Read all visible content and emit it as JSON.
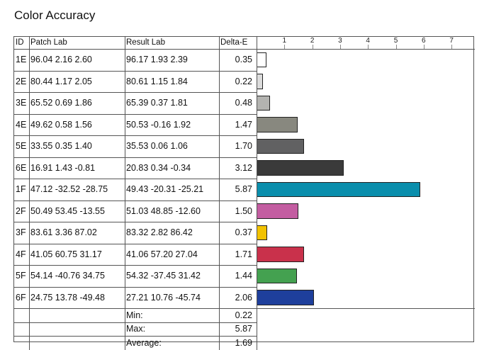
{
  "title": "Color Accuracy",
  "headers": {
    "id": "ID",
    "patch": "Patch Lab",
    "result": "Result Lab",
    "delta": "Delta-E"
  },
  "rows": [
    {
      "id": "1E",
      "patch": "96.04  2.16  2.60",
      "result": "96.17  1.93  2.39",
      "delta": "0.35",
      "value": 0.35,
      "color": "#ffffff"
    },
    {
      "id": "2E",
      "patch": "80.44  1.17  2.05",
      "result": "80.61  1.15  1.84",
      "delta": "0.22",
      "value": 0.22,
      "color": "#dcdcdc"
    },
    {
      "id": "3E",
      "patch": "65.52  0.69  1.86",
      "result": "65.39  0.37  1.81",
      "delta": "0.48",
      "value": 0.48,
      "color": "#b3b3b0"
    },
    {
      "id": "4E",
      "patch": "49.62  0.58  1.56",
      "result": "50.53  -0.16  1.92",
      "delta": "1.47",
      "value": 1.47,
      "color": "#88887f"
    },
    {
      "id": "5E",
      "patch": "33.55  0.35  1.40",
      "result": "35.53  0.06  1.06",
      "delta": "1.70",
      "value": 1.7,
      "color": "#616162"
    },
    {
      "id": "6E",
      "patch": "16.91  1.43  -0.81",
      "result": "20.83  0.34  -0.34",
      "delta": "3.12",
      "value": 3.12,
      "color": "#3a3a3a"
    },
    {
      "id": "1F",
      "patch": "47.12 -32.52 -28.75",
      "result": "49.43 -20.31 -25.21",
      "delta": "5.87",
      "value": 5.87,
      "color": "#0a8eac"
    },
    {
      "id": "2F",
      "patch": "50.49  53.45 -13.55",
      "result": "51.03  48.85 -12.60",
      "delta": "1.50",
      "value": 1.5,
      "color": "#c35da1"
    },
    {
      "id": "3F",
      "patch": "83.61  3.36  87.02",
      "result": "83.32  2.82  86.42",
      "delta": "0.37",
      "value": 0.37,
      "color": "#f2c200"
    },
    {
      "id": "4F",
      "patch": "41.05  60.75  31.17",
      "result": "41.06  57.20  27.04",
      "delta": "1.71",
      "value": 1.71,
      "color": "#c9314b"
    },
    {
      "id": "5F",
      "patch": "54.14 -40.76  34.75",
      "result": "54.32 -37.45  31.42",
      "delta": "1.44",
      "value": 1.44,
      "color": "#44a150"
    },
    {
      "id": "6F",
      "patch": "24.75  13.78 -49.48",
      "result": "27.21  10.76 -45.74",
      "delta": "2.06",
      "value": 2.06,
      "color": "#1e3f9c"
    }
  ],
  "summary": [
    {
      "label": "Min:",
      "value": "0.22"
    },
    {
      "label": "Max:",
      "value": "5.87"
    },
    {
      "label": "Average:",
      "value": "1.69"
    }
  ],
  "scale": {
    "ticks": [
      "1",
      "2",
      "3",
      "4",
      "5",
      "6",
      "7"
    ],
    "max": 7
  }
}
